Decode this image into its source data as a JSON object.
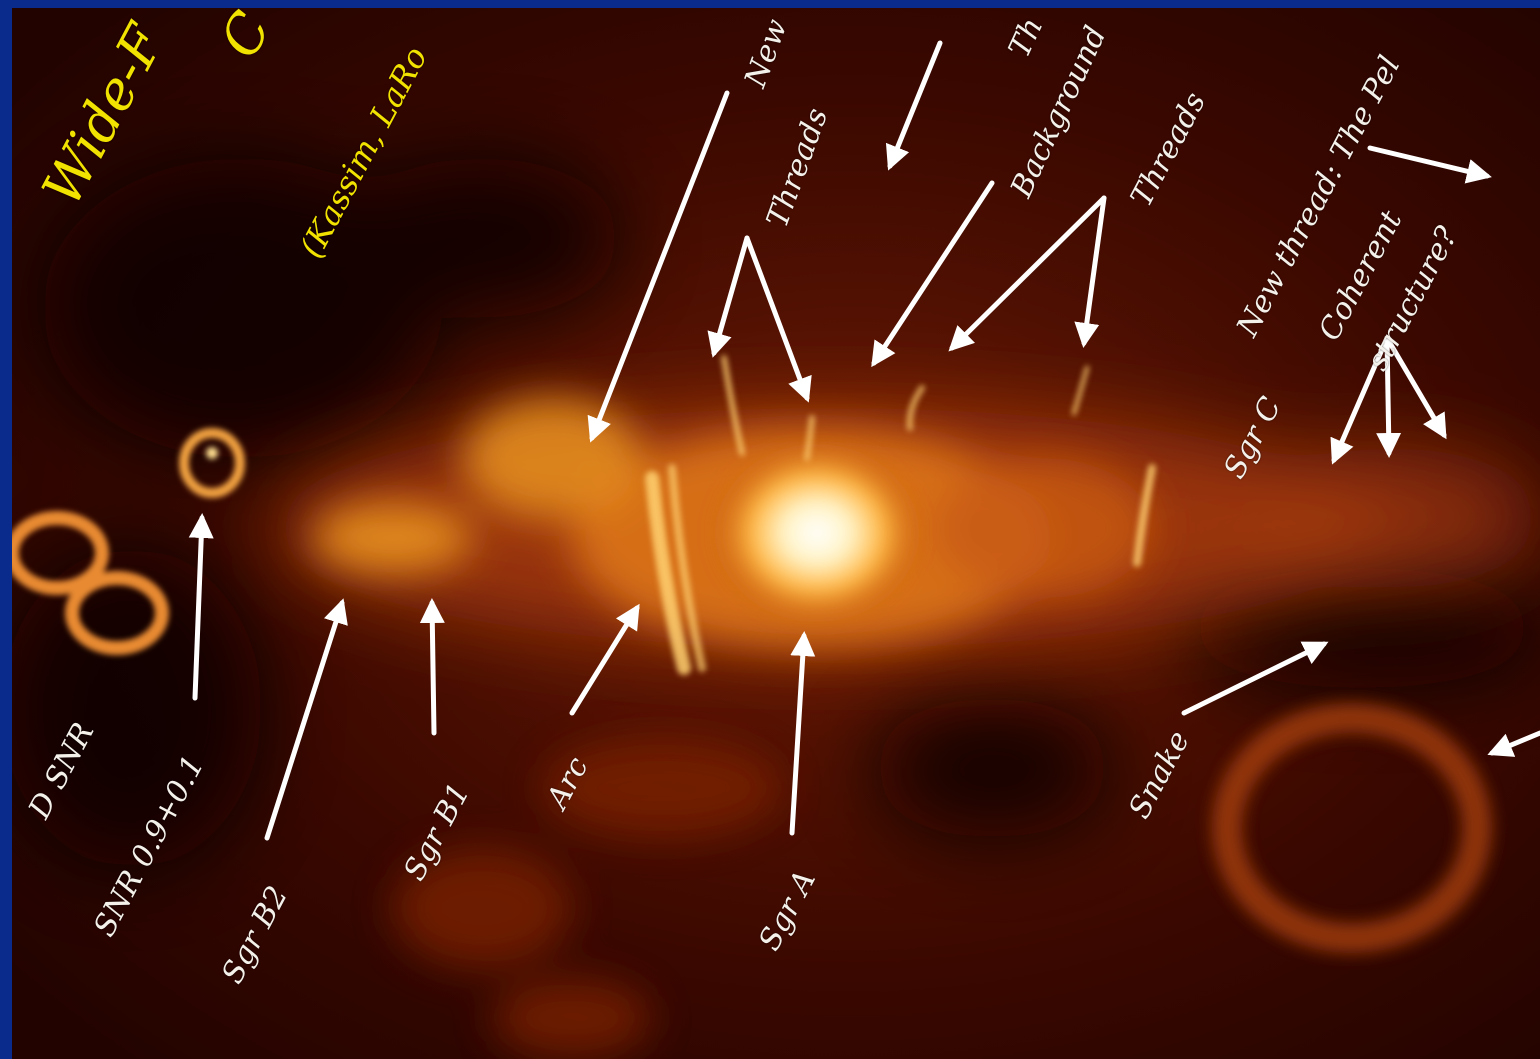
{
  "colors": {
    "border": "#0a2a8c",
    "title": "#f2e200",
    "label": "#f4f0ea",
    "arrow": "#ffffff"
  },
  "title_line1": "Wide-F",
  "title_line2": "C",
  "credit": "(Kassim, LaRo",
  "labels": {
    "new_top": "New",
    "threads_left": "Threads",
    "threads_right": "Threads",
    "background": "Background",
    "th_top": "Th",
    "new_thread": "New thread: The Pel",
    "coherent": "Coherent",
    "structure": "structure?",
    "sgr_c": "Sgr C",
    "snr_left": "D SNR",
    "snr_09": "SNR 0.9+0.1",
    "sgr_b2": "Sgr B2",
    "sgr_b1": "Sgr B1",
    "arc": "Arc",
    "sgr_a": "Sgr A",
    "snake": "Snake"
  }
}
